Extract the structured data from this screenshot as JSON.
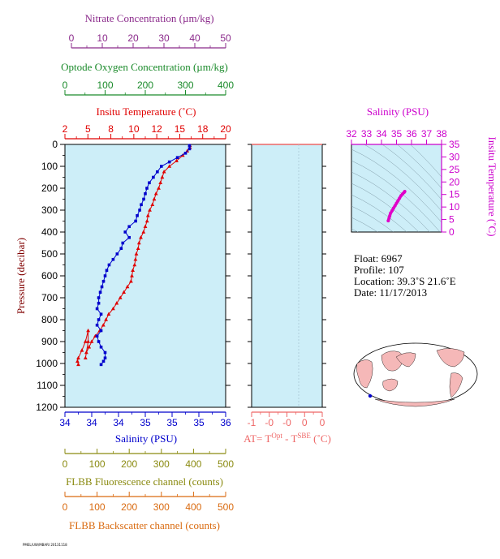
{
  "colors": {
    "nitrate": "#8b2a8b",
    "oxygen": "#1a8a2a",
    "temperature": "#e00000",
    "salinity": "#0000cc",
    "salinity_small": "#cc00cc",
    "at": "#ee6666",
    "fluorescence": "#8a8a10",
    "backscatter": "#d96a10",
    "plot_bg": "#cdeef8"
  },
  "top_axes": {
    "nitrate": {
      "title": "Nitrate Concentration (µm/kg)",
      "ticks": [
        "0",
        "10",
        "20",
        "30",
        "40",
        "50"
      ]
    },
    "oxygen": {
      "title": "Optode Oxygen Concentration (µm/kg)",
      "ticks": [
        "0",
        "100",
        "200",
        "300",
        "400"
      ]
    },
    "temperature": {
      "title": "Insitu Temperature (˚C)",
      "ticks": [
        "2",
        "5",
        "8",
        "10",
        "12",
        "15",
        "18",
        "20"
      ]
    }
  },
  "bottom_axes": {
    "salinity": {
      "title": "Salinity (PSU)",
      "ticks": [
        "34",
        "34",
        "34",
        "35",
        "35",
        "35",
        "36"
      ]
    },
    "at": {
      "title_main": "AT= T",
      "sup1": "Opt",
      "title_mid": " - T",
      "sup2": "SBE",
      "title_end": " (˚C)",
      "ticks": [
        "-1",
        "-0",
        "-0",
        "0",
        "0"
      ]
    },
    "fluorescence": {
      "title": "FLBB Fluorescence channel (counts)",
      "ticks": [
        "0",
        "100",
        "200",
        "300",
        "400",
        "500"
      ]
    },
    "backscatter": {
      "title": "FLBB Backscatter channel (counts)",
      "ticks": [
        "0",
        "100",
        "200",
        "300",
        "400",
        "500"
      ]
    }
  },
  "pressure_axis": {
    "title": "Pressure (decibar)",
    "ticks": [
      "0",
      "100",
      "200",
      "300",
      "400",
      "500",
      "600",
      "700",
      "800",
      "900",
      "1000",
      "1100",
      "1200"
    ]
  },
  "ts_plot": {
    "title": "Salinity (PSU)",
    "x_ticks": [
      "32",
      "33",
      "34",
      "35",
      "36",
      "37",
      "38"
    ],
    "y_ticks": [
      "35",
      "30",
      "25",
      "20",
      "15",
      "10",
      "5",
      "0"
    ],
    "ylabel": "Insitu Temperature (˚C)"
  },
  "info": {
    "float": "Float:  6967",
    "profile": "Profile:  107",
    "location": "Location:  39.3˚S  21.6˚E",
    "date": "Date:  11/17/2013"
  },
  "footer_text": "PMEL/UW/MBARI 20131118",
  "chart_data": [
    {
      "type": "line",
      "title": "Insitu Temperature (˚C)",
      "xlabel": "Insitu Temperature (˚C)",
      "ylabel": "Pressure (decibar)",
      "xlim": [
        2,
        20
      ],
      "ylim": [
        1200,
        0
      ],
      "series": [
        {
          "name": "Insitu Temperature (˚C)",
          "x": [
            16.0,
            16.0,
            15.7,
            15.2,
            14.5,
            13.7,
            13.1,
            12.9,
            12.7,
            12.5,
            12.2,
            12.0,
            11.8,
            11.5,
            11.3,
            11.2,
            11.0,
            10.8,
            10.5,
            10.3,
            10.2,
            10.0,
            9.9,
            9.8,
            9.6,
            9.5,
            9.4,
            9.0,
            8.6,
            8.2,
            7.8,
            7.4,
            6.9,
            6.6,
            6.3,
            5.9,
            5.4,
            5.0,
            4.7,
            4.4,
            4.3,
            4.6,
            4.6,
            4.3,
            3.9,
            3.5,
            3.4,
            3.5
          ],
          "y": [
            5,
            15,
            30,
            50,
            75,
            100,
            125,
            150,
            175,
            200,
            225,
            250,
            275,
            300,
            325,
            350,
            375,
            400,
            425,
            450,
            475,
            500,
            525,
            550,
            575,
            600,
            625,
            650,
            675,
            700,
            725,
            750,
            775,
            800,
            825,
            850,
            875,
            900,
            925,
            950,
            975,
            900,
            850,
            900,
            940,
            975,
            990,
            1005
          ]
        }
      ]
    },
    {
      "type": "line",
      "title": "Salinity (PSU)",
      "xlabel": "Salinity (PSU)",
      "ylabel": "Pressure (decibar)",
      "xlim": [
        34.0,
        36.0
      ],
      "ylim": [
        1200,
        0
      ],
      "series": [
        {
          "name": "Salinity (PSU)",
          "x": [
            35.55,
            35.55,
            35.5,
            35.4,
            35.3,
            35.2,
            35.15,
            35.1,
            35.05,
            35.02,
            35.0,
            34.98,
            34.95,
            34.93,
            34.9,
            34.88,
            34.8,
            34.75,
            34.8,
            34.72,
            34.7,
            34.65,
            34.6,
            34.55,
            34.52,
            34.5,
            34.48,
            34.46,
            34.44,
            34.42,
            34.42,
            34.4,
            34.45,
            34.42,
            34.4,
            34.45,
            34.4,
            34.42,
            34.45,
            34.5,
            34.5,
            34.48,
            34.45
          ],
          "y": [
            5,
            20,
            40,
            60,
            80,
            100,
            125,
            150,
            175,
            200,
            225,
            250,
            275,
            300,
            325,
            350,
            375,
            400,
            425,
            450,
            475,
            500,
            525,
            550,
            575,
            600,
            625,
            650,
            675,
            700,
            725,
            750,
            775,
            800,
            825,
            850,
            875,
            900,
            925,
            950,
            975,
            990,
            1005
          ]
        }
      ]
    },
    {
      "type": "line",
      "title": "AT= TOpt - TSBE (˚C)",
      "xlabel": "AT= TOpt - TSBE (˚C)",
      "ylabel": "",
      "xlim": [
        -1,
        0
      ],
      "ylim": [
        1200,
        0
      ],
      "series": []
    },
    {
      "type": "scatter",
      "title": "Salinity (PSU)",
      "xlabel": "Salinity (PSU)",
      "ylabel": "Insitu Temperature (˚C)",
      "xlim": [
        32,
        38
      ],
      "ylim": [
        0,
        35
      ],
      "series": [
        {
          "name": "Salinity (PSU)",
          "x": [
            34.45,
            34.5,
            34.55,
            34.6,
            34.7,
            34.8,
            34.9,
            35.0,
            35.1,
            35.2,
            35.3,
            35.4,
            35.5,
            35.55
          ],
          "y": [
            4.5,
            5.5,
            6.5,
            7.5,
            8.5,
            9.5,
            10.5,
            11.5,
            12.5,
            13.5,
            14.5,
            15.2,
            15.8,
            16.2
          ]
        }
      ]
    }
  ]
}
